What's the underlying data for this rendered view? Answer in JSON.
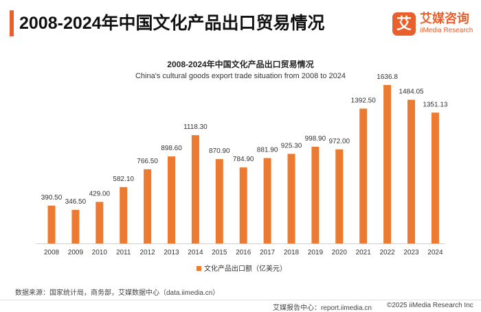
{
  "header": {
    "title": "2008-2024年中国文化产品出口贸易情况"
  },
  "logo": {
    "mark": "艾",
    "cn": "艾媒咨询",
    "en": "iiMedia Research"
  },
  "chart_data": {
    "type": "bar",
    "title": "2008-2024年中国文化产品出口贸易情况",
    "subtitle": "China's cultural goods export trade situation from 2008 to 2024",
    "categories": [
      "2008",
      "2009",
      "2010",
      "2011",
      "2012",
      "2013",
      "2014",
      "2015",
      "2016",
      "2017",
      "2018",
      "2019",
      "2020",
      "2021",
      "2022",
      "2023",
      "2024"
    ],
    "values": [
      390.5,
      346.5,
      429.0,
      582.1,
      766.5,
      898.6,
      1118.3,
      870.9,
      784.9,
      881.9,
      925.3,
      998.9,
      972.0,
      1392.5,
      1636.8,
      1484.05,
      1351.13
    ],
    "value_labels": [
      "390.50",
      "346.50",
      "429.00",
      "582.10",
      "766.50",
      "898.60",
      "1118.30",
      "870.90",
      "784.90",
      "881.90",
      "925.30",
      "998.90",
      "972.00",
      "1392.50",
      "1636.8",
      "1484.05",
      "1351.13"
    ],
    "legend": "文化产品出口额（亿美元）",
    "bar_color": "#ec7a30",
    "ylim": [
      0,
      1700
    ],
    "grid": false,
    "xlabel": "",
    "ylabel": ""
  },
  "footer": {
    "source": "数据来源：国家统计局，商务部，艾媒数据中心（data.iimedia.cn）",
    "report": "艾媒报告中心：report.iimedia.cn",
    "copyright": "©2025  iiMedia Research  Inc"
  }
}
